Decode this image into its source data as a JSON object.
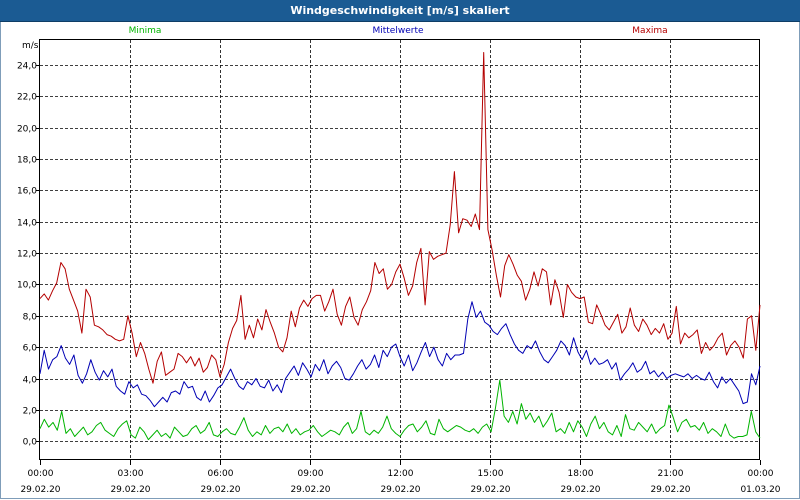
{
  "window": {
    "title": "Windgeschwindigkeit [m/s] skaliert"
  },
  "chart_data": {
    "type": "line",
    "title": "Windgeschwindigkeit [m/s] skaliert",
    "ylabel": "m/s",
    "xlabel": "",
    "ylim": [
      -1.2,
      25.6
    ],
    "yticks": [
      0,
      2,
      4,
      6,
      8,
      10,
      12,
      14,
      16,
      18,
      20,
      22,
      24
    ],
    "ytick_labels": [
      "0,0",
      "2,0",
      "4,0",
      "6,0",
      "8,0",
      "10,0",
      "12,0",
      "14,0",
      "16,0",
      "18,0",
      "20,0",
      "22,0",
      "24,0"
    ],
    "xlim_hours": [
      0,
      24
    ],
    "xtick_hours": [
      0,
      3,
      6,
      9,
      12,
      15,
      18,
      21,
      24
    ],
    "xtick_times": [
      "00:00",
      "03:00",
      "06:00",
      "09:00",
      "12:00",
      "15:00",
      "18:00",
      "21:00",
      "00:00"
    ],
    "xtick_dates": [
      "29.02.20",
      "29.02.20",
      "29.02.20",
      "29.02.20",
      "29.02.20",
      "29.02.20",
      "29.02.20",
      "29.02.20",
      "01.03.20"
    ],
    "grid": true,
    "legend_position": "top",
    "series": [
      {
        "name": "Minima",
        "color": "#00b400",
        "values": [
          0.8,
          1.4,
          0.9,
          1.2,
          0.7,
          1.9,
          0.5,
          0.8,
          0.3,
          0.6,
          0.9,
          0.4,
          0.6,
          1.0,
          1.2,
          0.7,
          0.5,
          0.3,
          0.8,
          1.1,
          1.3,
          0.4,
          0.2,
          0.9,
          0.6,
          0.1,
          0.4,
          0.7,
          0.3,
          0.5,
          0.2,
          0.9,
          0.6,
          0.3,
          0.4,
          0.8,
          1.0,
          0.5,
          0.7,
          1.2,
          0.4,
          0.3,
          0.6,
          0.8,
          0.5,
          0.4,
          0.9,
          1.5,
          0.7,
          0.3,
          0.6,
          0.4,
          1.0,
          0.5,
          0.8,
          0.9,
          0.6,
          1.1,
          0.5,
          0.8,
          0.4,
          0.6,
          0.7,
          1.0,
          0.6,
          0.3,
          0.5,
          0.7,
          0.6,
          0.4,
          0.9,
          1.2,
          0.5,
          0.8,
          1.9,
          0.6,
          0.4,
          0.7,
          0.5,
          0.9,
          1.6,
          0.8,
          0.5,
          0.3,
          0.7,
          1.0,
          1.1,
          0.6,
          0.9,
          1.3,
          0.5,
          0.4,
          1.4,
          0.8,
          0.6,
          0.8,
          1.0,
          0.9,
          0.7,
          0.6,
          0.8,
          0.5,
          0.9,
          1.1,
          0.6,
          2.1,
          3.9,
          1.6,
          1.2,
          1.9,
          1.1,
          2.4,
          1.4,
          1.8,
          1.2,
          1.6,
          0.9,
          1.3,
          1.8,
          0.6,
          0.8,
          0.5,
          1.2,
          0.6,
          1.3,
          0.9,
          0.3,
          1.1,
          1.6,
          0.8,
          1.2,
          0.6,
          0.4,
          1.0,
          0.3,
          1.7,
          0.8,
          0.7,
          1.2,
          0.9,
          0.6,
          1.1,
          0.5,
          0.8,
          1.0,
          2.3,
          1.5,
          0.6,
          1.2,
          1.4,
          0.9,
          1.0,
          0.7,
          1.2,
          0.5,
          0.8,
          0.6,
          0.3,
          1.1,
          0.4,
          0.2,
          0.3,
          0.3,
          0.4,
          1.9,
          0.6,
          0.2
        ]
      },
      {
        "name": "Mittelwerte",
        "color": "#0000b4",
        "values": [
          4.3,
          5.8,
          4.6,
          5.2,
          5.4,
          6.1,
          5.3,
          4.9,
          5.5,
          4.2,
          3.7,
          4.3,
          5.2,
          4.4,
          3.9,
          4.5,
          4.1,
          4.6,
          3.5,
          3.2,
          3.0,
          3.8,
          3.4,
          3.6,
          3.0,
          2.9,
          2.6,
          2.2,
          2.5,
          2.8,
          2.5,
          3.1,
          3.2,
          3.0,
          3.8,
          3.4,
          3.5,
          2.8,
          2.6,
          3.2,
          2.5,
          2.9,
          3.4,
          3.6,
          4.1,
          4.6,
          4.0,
          3.5,
          3.3,
          3.8,
          3.6,
          4.0,
          3.5,
          3.4,
          3.9,
          3.2,
          3.6,
          3.1,
          4.0,
          4.4,
          4.8,
          4.2,
          5.0,
          4.6,
          4.1,
          4.9,
          4.5,
          5.2,
          4.3,
          4.8,
          5.1,
          4.7,
          4.0,
          3.9,
          4.3,
          4.8,
          5.2,
          4.6,
          4.9,
          5.5,
          4.7,
          5.8,
          5.4,
          6.0,
          6.2,
          5.4,
          4.8,
          5.5,
          4.5,
          5.0,
          5.7,
          6.3,
          5.4,
          6.0,
          5.2,
          4.8,
          5.6,
          5.2,
          5.5,
          5.5,
          5.6,
          7.8,
          8.9,
          7.9,
          8.3,
          7.6,
          7.4,
          7.0,
          6.8,
          7.2,
          7.5,
          6.8,
          6.2,
          5.8,
          5.6,
          6.1,
          5.9,
          6.4,
          5.7,
          5.2,
          5.0,
          5.4,
          5.8,
          6.4,
          6.1,
          5.5,
          6.6,
          5.7,
          5.2,
          5.8,
          4.9,
          5.3,
          4.9,
          5.0,
          5.2,
          4.6,
          5.0,
          3.9,
          4.3,
          4.6,
          5.0,
          4.4,
          4.6,
          5.1,
          4.3,
          4.5,
          4.1,
          4.4,
          4.0,
          4.2,
          4.3,
          4.2,
          4.1,
          4.3,
          4.0,
          4.2,
          4.0,
          3.9,
          4.4,
          3.8,
          3.4,
          4.1,
          3.7,
          4.0,
          3.6,
          3.2,
          2.4,
          2.5,
          4.3,
          3.6,
          4.8
        ]
      },
      {
        "name": "Maxima",
        "color": "#b40000",
        "values": [
          9.1,
          9.4,
          9.0,
          9.6,
          10.1,
          11.4,
          11.0,
          9.7,
          9.0,
          8.3,
          6.9,
          9.7,
          9.2,
          7.4,
          7.3,
          7.1,
          6.8,
          6.7,
          6.5,
          6.4,
          6.5,
          8.0,
          6.9,
          5.4,
          6.3,
          5.6,
          4.6,
          3.7,
          5.1,
          5.7,
          4.2,
          4.4,
          4.6,
          5.6,
          5.4,
          5.0,
          5.4,
          4.8,
          5.3,
          4.4,
          4.7,
          5.5,
          5.2,
          4.1,
          4.9,
          6.3,
          7.2,
          7.7,
          9.3,
          6.5,
          7.4,
          6.6,
          7.8,
          7.1,
          8.4,
          7.6,
          6.9,
          6.0,
          5.7,
          6.6,
          8.3,
          7.3,
          8.5,
          9.0,
          8.6,
          9.1,
          9.3,
          9.3,
          8.3,
          8.9,
          9.7,
          8.1,
          7.4,
          8.6,
          9.2,
          7.9,
          7.4,
          8.4,
          8.9,
          9.6,
          11.4,
          10.7,
          11.0,
          9.7,
          10.0,
          10.8,
          11.3,
          10.4,
          9.3,
          9.9,
          11.4,
          12.3,
          8.7,
          12.1,
          11.6,
          11.8,
          11.9,
          12.0,
          13.8,
          17.2,
          13.3,
          14.2,
          14.1,
          13.7,
          14.5,
          13.5,
          24.8,
          13.5,
          12.2,
          10.6,
          9.2,
          11.2,
          11.9,
          11.3,
          10.6,
          10.2,
          9.0,
          9.7,
          10.8,
          9.9,
          11.0,
          10.8,
          8.7,
          10.3,
          9.5,
          7.9,
          10.0,
          9.5,
          9.2,
          9.1,
          9.2,
          7.6,
          7.5,
          8.7,
          8.1,
          7.4,
          7.1,
          7.6,
          8.1,
          6.9,
          7.3,
          8.5,
          7.4,
          7.0,
          7.8,
          7.4,
          6.8,
          7.2,
          6.9,
          7.5,
          6.5,
          6.9,
          8.6,
          6.2,
          6.9,
          6.6,
          6.8,
          7.1,
          5.6,
          6.3,
          5.8,
          6.1,
          6.6,
          6.9,
          5.5,
          6.1,
          6.4,
          6.0,
          5.3,
          7.8,
          8.0,
          5.8,
          8.7
        ]
      }
    ]
  }
}
